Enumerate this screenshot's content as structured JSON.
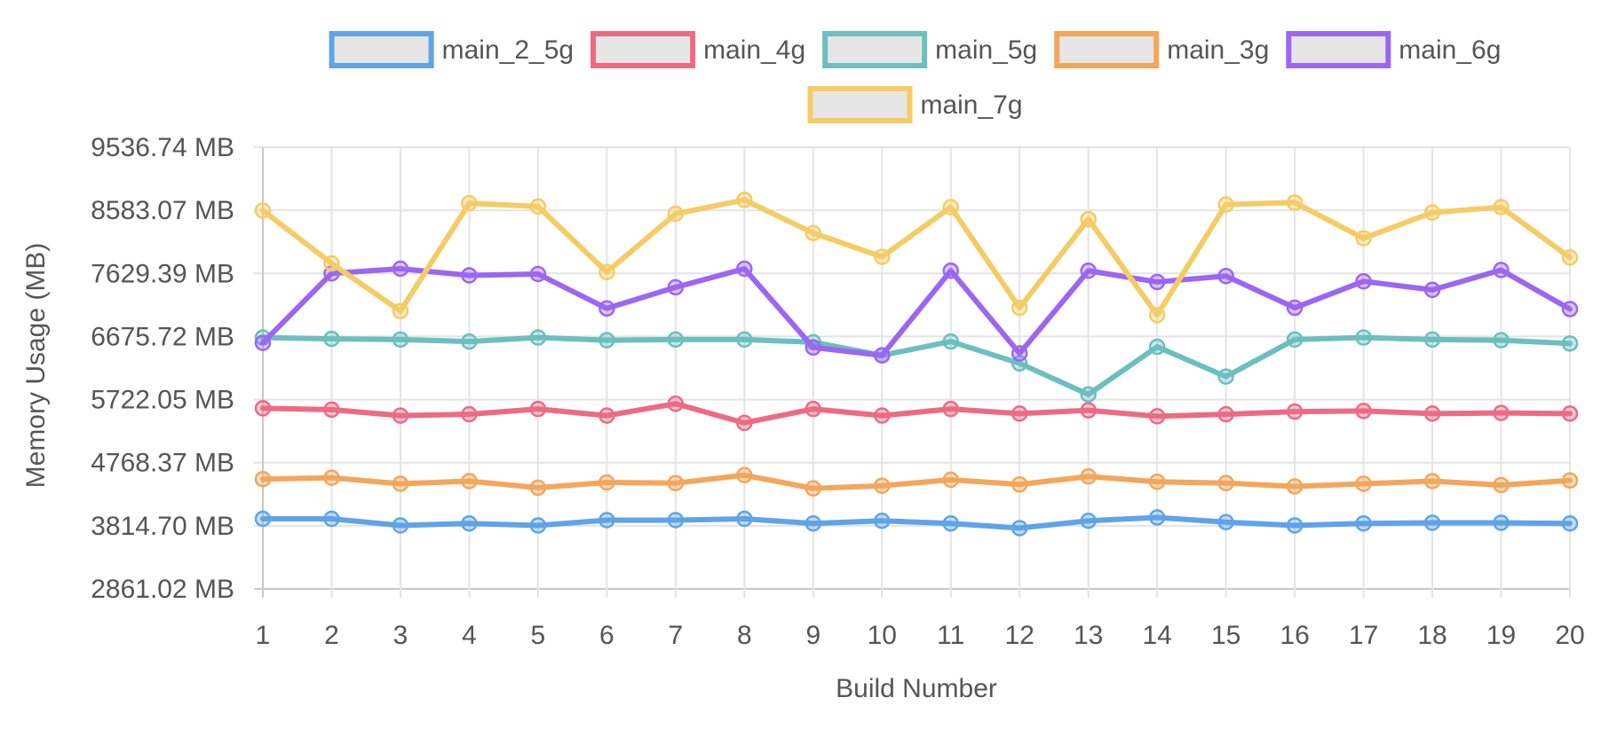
{
  "chart_data": {
    "type": "line",
    "xlabel": "Build Number",
    "ylabel": "Memory Usage (MB)",
    "x": [
      1,
      2,
      3,
      4,
      5,
      6,
      7,
      8,
      9,
      10,
      11,
      12,
      13,
      14,
      15,
      16,
      17,
      18,
      19,
      20
    ],
    "x_ticks": [
      "1",
      "2",
      "3",
      "4",
      "5",
      "6",
      "7",
      "8",
      "9",
      "10",
      "11",
      "12",
      "13",
      "14",
      "15",
      "16",
      "17",
      "18",
      "19",
      "20"
    ],
    "y_ticks": [
      {
        "value": 2861.02,
        "label": "2861.02 MB"
      },
      {
        "value": 3814.7,
        "label": "3814.70 MB"
      },
      {
        "value": 4768.37,
        "label": "4768.37 MB"
      },
      {
        "value": 5722.05,
        "label": "5722.05 MB"
      },
      {
        "value": 6675.72,
        "label": "6675.72 MB"
      },
      {
        "value": 7629.39,
        "label": "7629.39 MB"
      },
      {
        "value": 8583.07,
        "label": "8583.07 MB"
      },
      {
        "value": 9536.74,
        "label": "9536.74 MB"
      }
    ],
    "ylim": [
      2861.02,
      9536.74
    ],
    "grid": true,
    "legend_position": "top",
    "series": [
      {
        "name": "main_2_5g",
        "color": "#5ea4e8",
        "values": [
          3920,
          3920,
          3820,
          3850,
          3820,
          3900,
          3900,
          3920,
          3850,
          3890,
          3850,
          3780,
          3890,
          3940,
          3870,
          3820,
          3850,
          3860,
          3860,
          3850
        ]
      },
      {
        "name": "main_4g",
        "color": "#ee6a83",
        "values": [
          5590,
          5570,
          5480,
          5500,
          5580,
          5480,
          5660,
          5370,
          5580,
          5480,
          5580,
          5510,
          5560,
          5470,
          5500,
          5540,
          5550,
          5510,
          5520,
          5510
        ]
      },
      {
        "name": "main_5g",
        "color": "#6bbfbf",
        "values": [
          6660,
          6640,
          6630,
          6600,
          6660,
          6620,
          6630,
          6630,
          6590,
          6390,
          6600,
          6270,
          5800,
          6520,
          6070,
          6630,
          6660,
          6630,
          6620,
          6570
        ]
      },
      {
        "name": "main_3g",
        "color": "#f4a65a",
        "values": [
          4520,
          4540,
          4450,
          4490,
          4390,
          4470,
          4460,
          4580,
          4380,
          4420,
          4510,
          4440,
          4560,
          4480,
          4460,
          4410,
          4450,
          4490,
          4430,
          4500
        ]
      },
      {
        "name": "main_6g",
        "color": "#9c66f3",
        "values": [
          6580,
          7630,
          7700,
          7600,
          7620,
          7100,
          7420,
          7700,
          6510,
          6390,
          7670,
          6420,
          7670,
          7500,
          7590,
          7110,
          7510,
          7380,
          7680,
          7090
        ]
      },
      {
        "name": "main_7g",
        "color": "#f5cc64",
        "values": [
          8580,
          7780,
          7060,
          8690,
          8640,
          7650,
          8530,
          8740,
          8240,
          7880,
          8630,
          7110,
          8450,
          7000,
          8670,
          8700,
          8160,
          8550,
          8630,
          7870
        ]
      }
    ]
  }
}
